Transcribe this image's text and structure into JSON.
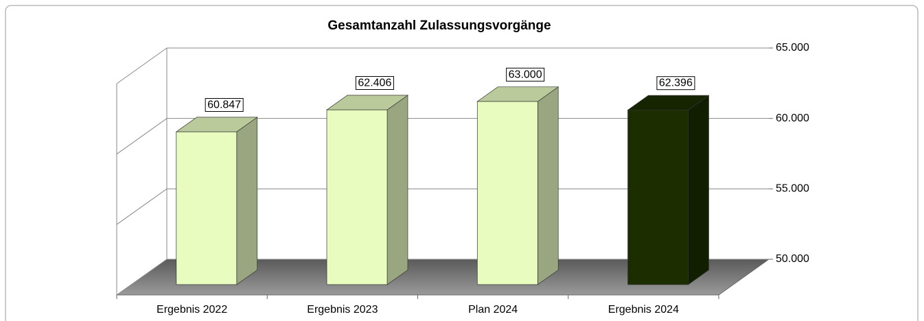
{
  "chart_data": {
    "type": "bar3d",
    "title": "Gesamtanzahl Zulassungsvorgänge",
    "categories": [
      "Ergebnis 2022",
      "Ergebnis 2023",
      "Plan 2024",
      "Ergebnis 2024"
    ],
    "values": [
      60847,
      62406,
      63000,
      62396
    ],
    "value_labels": [
      "60.847",
      "62.406",
      "63.000",
      "62.396"
    ],
    "colors": [
      "#e8fcc0",
      "#e8fcc0",
      "#e8fcc0",
      "#1c2e00"
    ],
    "ylim": [
      50000,
      65000
    ],
    "yticks": [
      {
        "value": 50000,
        "label": "50.000"
      },
      {
        "value": 55000,
        "label": "55.000"
      },
      {
        "value": 60000,
        "label": "60.000"
      },
      {
        "value": 65000,
        "label": "65.000"
      }
    ],
    "grid": true
  }
}
